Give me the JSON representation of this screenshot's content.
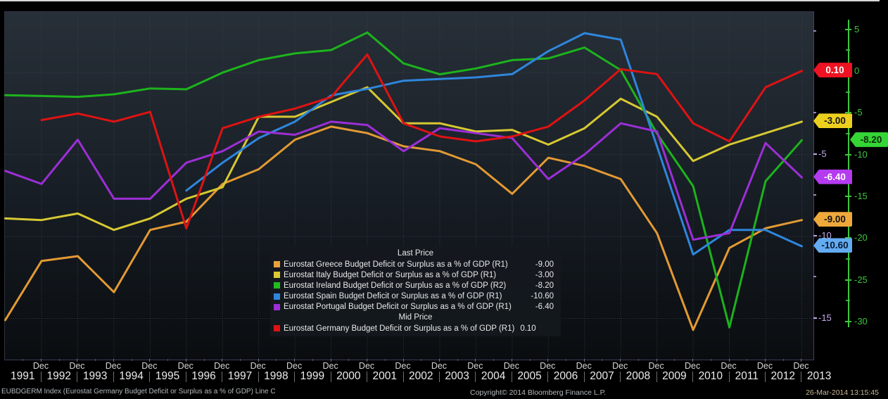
{
  "legend": {
    "group1_title": "Last Price",
    "group2_title": "Mid Price",
    "items": [
      {
        "key": "greece",
        "label": "Eurostat Greece Budget Deficit or Surplus as a % of GDP  (R1)",
        "value": "-9.00",
        "swatch": "#E8A33C",
        "group": 1,
        "value_inline": false
      },
      {
        "key": "italy",
        "label": "Eurostat Italy Budget Deficit or Surplus as a % of GDP  (R1)",
        "value": "-3.00",
        "swatch": "#DCC832",
        "group": 1,
        "value_inline": false
      },
      {
        "key": "ireland",
        "label": "Eurostat Ireland Budget Deficit or Surplus as a % of GDP  (R2)",
        "value": "-8.20",
        "swatch": "#21BB21",
        "group": 1,
        "value_inline": false
      },
      {
        "key": "spain",
        "label": "Eurostat Spain Budget Deficit or Surplus as a % of GDP  (R1)",
        "value": "-10.60",
        "swatch": "#2E86DC",
        "group": 1,
        "value_inline": false
      },
      {
        "key": "portugal",
        "label": "Eurostat Portugal Budget Deficit or Surplus as a % of GDP  (R1)",
        "value": "-6.40",
        "swatch": "#9C2FD6",
        "group": 1,
        "value_inline": false
      },
      {
        "key": "germany",
        "label": "Eurostat Germany Budget Deficit or Surplus as a % of GDP  (R1)",
        "value": "0.10",
        "swatch": "#DE1313",
        "group": 2,
        "value_inline": true
      }
    ]
  },
  "status_bar": {
    "left": "EUBDGERM Index (Eurostat Germany Budget Deficit or Surplus as a % of GDP) Line C",
    "copyright": "Copyright© 2014 Bloomberg Finance L.P.",
    "timestamp": "26-Mar-2014 13:15:45"
  },
  "chart_data": {
    "type": "line",
    "x_tick_label": "Dec",
    "x_years": [
      "1991",
      "1992",
      "1993",
      "1994",
      "1995",
      "1996",
      "1997",
      "1998",
      "1999",
      "2000",
      "2001",
      "2002",
      "2003",
      "2004",
      "2005",
      "2006",
      "2007",
      "2008",
      "2009",
      "2010",
      "2011",
      "2012",
      "2013"
    ],
    "grid": true,
    "legend_position": "center-bottom",
    "axes": {
      "R1": {
        "side": "inner-right",
        "color": "#C6A9EA",
        "ticks": [
          -5,
          -10,
          -15
        ],
        "minor_ticks": [
          2.5,
          -2.5,
          -7.5,
          -12.5
        ],
        "range": [
          -17.8,
          3.9
        ]
      },
      "R2": {
        "side": "outer-right",
        "color": "#3DC63D",
        "ticks": [
          5,
          0,
          -5,
          -10,
          -15,
          -20,
          -25,
          -30
        ],
        "minor_ticks": [
          2.5,
          -2.5,
          -7.5,
          -12.5,
          -17.5,
          -22.5,
          -27.5
        ],
        "range": [
          -35.0,
          7.6
        ]
      }
    },
    "series": [
      {
        "name": "Eurostat Greece Budget Deficit or Surplus as a % of GDP",
        "axis": "R1",
        "color": "#E39A33",
        "badge_color": "#EFA93B",
        "badge_text_color": "#141414",
        "start_year": 1990,
        "last_price": -9.0,
        "badge_label": "-9.00",
        "values": [
          -15.1,
          -11.5,
          -11.2,
          -13.4,
          -9.6,
          -9.1,
          -6.8,
          -5.9,
          -4.1,
          -3.3,
          -3.7,
          -4.5,
          -4.8,
          -5.6,
          -7.4,
          -5.2,
          -5.7,
          -6.5,
          -9.8,
          -15.7,
          -10.7,
          -9.5,
          -9.0
        ]
      },
      {
        "name": "Eurostat Italy Budget Deficit or Surplus as a % of GDP",
        "axis": "R1",
        "color": "#D7C832",
        "badge_color": "#EDD01F",
        "badge_text_color": "#141414",
        "start_year": 1990,
        "last_price": -3.0,
        "badge_label": "-3.00",
        "values": [
          -8.9,
          -9.0,
          -8.6,
          -9.6,
          -8.9,
          -7.7,
          -7.0,
          -2.7,
          -2.7,
          -1.8,
          -0.9,
          -3.1,
          -3.1,
          -3.6,
          -3.5,
          -4.4,
          -3.4,
          -1.6,
          -2.7,
          -5.4,
          -4.4,
          -3.7,
          -3.0
        ]
      },
      {
        "name": "Eurostat Ireland Budget Deficit or Surplus as a % of GDP",
        "axis": "R2",
        "color": "#1DB31D",
        "badge_color": "#35D535",
        "badge_text_color": "#0b2a0b",
        "start_year": 1990,
        "last_price": -8.2,
        "badge_label": "-8.20",
        "values": [
          -2.8,
          -2.9,
          -3.0,
          -2.7,
          -2.0,
          -2.1,
          -0.1,
          1.4,
          2.2,
          2.6,
          4.7,
          1.0,
          -0.3,
          0.4,
          1.4,
          1.6,
          2.9,
          0.2,
          -7.4,
          -13.7,
          -30.6,
          -13.1,
          -8.2
        ]
      },
      {
        "name": "Eurostat Spain Budget Deficit or Surplus as a % of GDP",
        "axis": "R1",
        "color": "#2E86DC",
        "badge_color": "#63ACF2",
        "badge_text_color": "#0a1b33",
        "start_year": 1995,
        "last_price": -10.6,
        "badge_label": "-10.60",
        "values": [
          -7.2,
          -5.5,
          -4.0,
          -3.0,
          -1.4,
          -1.0,
          -0.5,
          -0.4,
          -0.3,
          -0.1,
          1.3,
          2.4,
          2.0,
          -4.5,
          -11.1,
          -9.6,
          -9.6,
          -10.6
        ]
      },
      {
        "name": "Eurostat Portugal Budget Deficit or Surplus as a % of GDP",
        "axis": "R1",
        "color": "#9C2FD6",
        "badge_color": "#B43BF0",
        "badge_text_color": "#ffffff",
        "start_year": 1990,
        "last_price": -6.4,
        "badge_label": "-6.40",
        "values": [
          -6.0,
          -6.8,
          -4.1,
          -7.7,
          -7.7,
          -5.5,
          -4.8,
          -3.6,
          -3.8,
          -3.0,
          -3.2,
          -4.8,
          -3.4,
          -3.7,
          -4.0,
          -6.5,
          -5.0,
          -3.1,
          -3.6,
          -10.2,
          -9.8,
          -4.3,
          -6.4
        ]
      },
      {
        "name": "Eurostat Germany Budget Deficit or Surplus as a % of GDP",
        "axis": "R1",
        "color": "#DE1313",
        "badge_color": "#EE1322",
        "badge_text_color": "#ffffff",
        "start_year": 1991,
        "last_price": 0.1,
        "badge_label": "0.10",
        "values": [
          -2.9,
          -2.5,
          -3.0,
          -2.4,
          -9.5,
          -3.4,
          -2.7,
          -2.2,
          -1.5,
          1.1,
          -3.1,
          -3.9,
          -4.2,
          -3.9,
          -3.3,
          -1.7,
          0.2,
          -0.1,
          -3.1,
          -4.2,
          -0.9,
          0.1
        ]
      }
    ]
  }
}
